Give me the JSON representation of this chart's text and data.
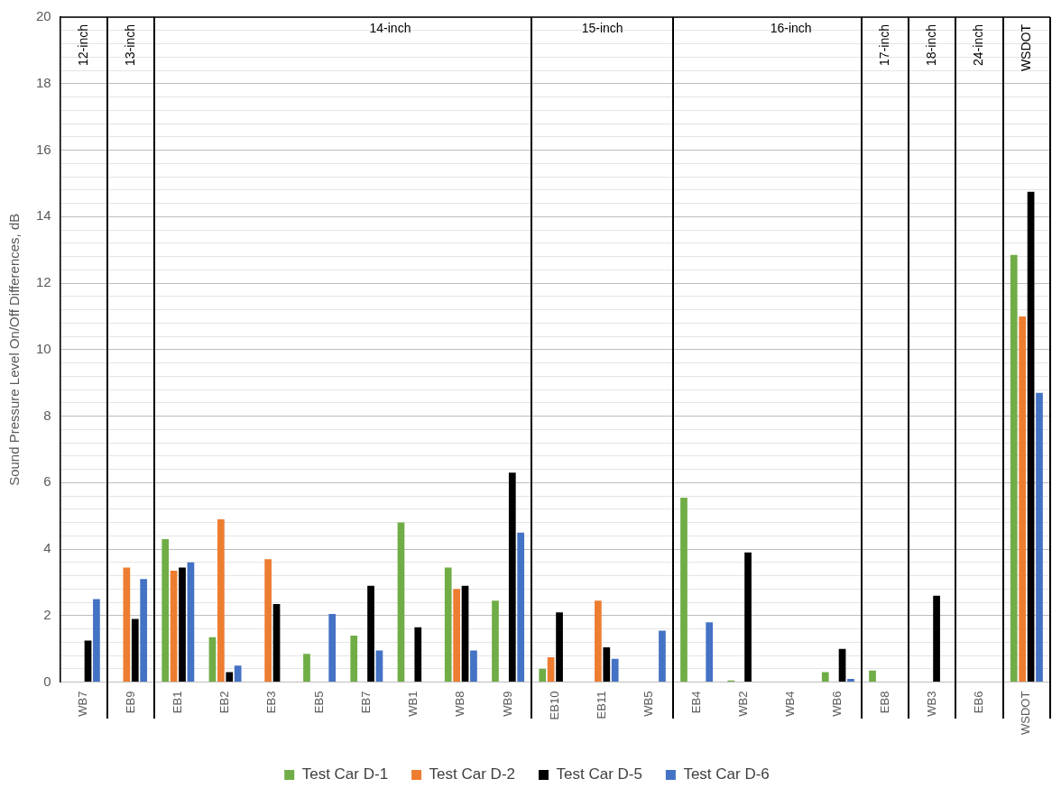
{
  "chart_data": {
    "type": "bar",
    "ylabel": "Sound Pressure Level On/Off Differences, dB",
    "categories": [
      "WB7",
      "EB9",
      "EB1",
      "EB2",
      "EB3",
      "EB5",
      "EB7",
      "WB1",
      "WB8",
      "WB9",
      "EB10",
      "EB11",
      "WB5",
      "EB4",
      "WB2",
      "WB4",
      "WB6",
      "EB8",
      "WB3",
      "EB6",
      "WSDOT"
    ],
    "series": [
      {
        "name": "Test Car D-1",
        "color": "#70ad47",
        "values": [
          null,
          null,
          4.3,
          1.35,
          null,
          0.85,
          1.4,
          4.8,
          3.45,
          2.45,
          0.4,
          null,
          null,
          5.55,
          0.05,
          null,
          0.3,
          0.35,
          null,
          null,
          12.85
        ]
      },
      {
        "name": "Test Car D-2",
        "color": "#ed7d31",
        "values": [
          null,
          3.45,
          3.35,
          4.9,
          3.7,
          null,
          null,
          null,
          2.8,
          null,
          0.75,
          2.45,
          null,
          null,
          null,
          null,
          null,
          null,
          null,
          null,
          11.0
        ]
      },
      {
        "name": "Test Car D-5",
        "color": "#000000",
        "values": [
          1.25,
          1.9,
          3.45,
          0.3,
          2.35,
          null,
          2.9,
          1.65,
          2.9,
          6.3,
          2.1,
          1.05,
          null,
          null,
          3.9,
          null,
          1.0,
          null,
          2.6,
          null,
          14.75
        ]
      },
      {
        "name": "Test Car D-6",
        "color": "#4472c4",
        "values": [
          2.5,
          3.1,
          3.6,
          0.5,
          null,
          2.05,
          0.95,
          null,
          0.95,
          4.5,
          null,
          0.7,
          1.55,
          1.8,
          null,
          null,
          0.1,
          null,
          null,
          null,
          8.7
        ]
      }
    ],
    "ylim": [
      0,
      20
    ],
    "yticks": [
      0,
      {
        "value": 0.4,
        "label": null
      },
      {
        "value": 0.8,
        "label": null
      },
      {
        "value": 1.2,
        "label": null
      },
      {
        "value": 1.6,
        "label": null
      },
      2,
      {
        "value": 2.4,
        "label": null
      },
      {
        "value": 2.8,
        "label": null
      },
      {
        "value": 3.2,
        "label": null
      },
      {
        "value": 3.6,
        "label": null
      },
      4,
      {
        "value": 4.4,
        "label": null
      },
      {
        "value": 4.8,
        "label": null
      },
      {
        "value": 5.2,
        "label": null
      },
      {
        "value": 5.6,
        "label": null
      },
      6,
      {
        "value": 6.4,
        "label": null
      },
      {
        "value": 6.8,
        "label": null
      },
      {
        "value": 7.2,
        "label": null
      },
      {
        "value": 7.6,
        "label": null
      },
      8,
      {
        "value": 8.4,
        "label": null
      },
      {
        "value": 8.8,
        "label": null
      },
      {
        "value": 9.2,
        "label": null
      },
      {
        "value": 9.6,
        "label": null
      },
      10,
      {
        "value": 10.4,
        "label": null
      },
      {
        "value": 10.8,
        "label": null
      },
      {
        "value": 11.2,
        "label": null
      },
      {
        "value": 11.6,
        "label": null
      },
      12,
      {
        "value": 12.4,
        "label": null
      },
      {
        "value": 12.8,
        "label": null
      },
      {
        "value": 13.2,
        "label": null
      },
      {
        "value": 13.6,
        "label": null
      },
      14,
      {
        "value": 14.4,
        "label": null
      },
      {
        "value": 14.8,
        "label": null
      },
      {
        "value": 15.2,
        "label": null
      },
      {
        "value": 15.6,
        "label": null
      },
      16,
      {
        "value": 16.4,
        "label": null
      },
      {
        "value": 16.8,
        "label": null
      },
      {
        "value": 17.2,
        "label": null
      },
      {
        "value": 17.6,
        "label": null
      },
      18,
      {
        "value": 18.4,
        "label": null
      },
      {
        "value": 18.8,
        "label": null
      },
      {
        "value": 19.2,
        "label": null
      },
      {
        "value": 19.6,
        "label": null
      },
      20
    ],
    "grid": "y",
    "legend": "bottom",
    "annotations": [
      "12-inch",
      "13-inch",
      "14-inch",
      "15-inch",
      "16-inch",
      "17-inch",
      "18-inch",
      "24-inch",
      "WSDOT"
    ]
  }
}
